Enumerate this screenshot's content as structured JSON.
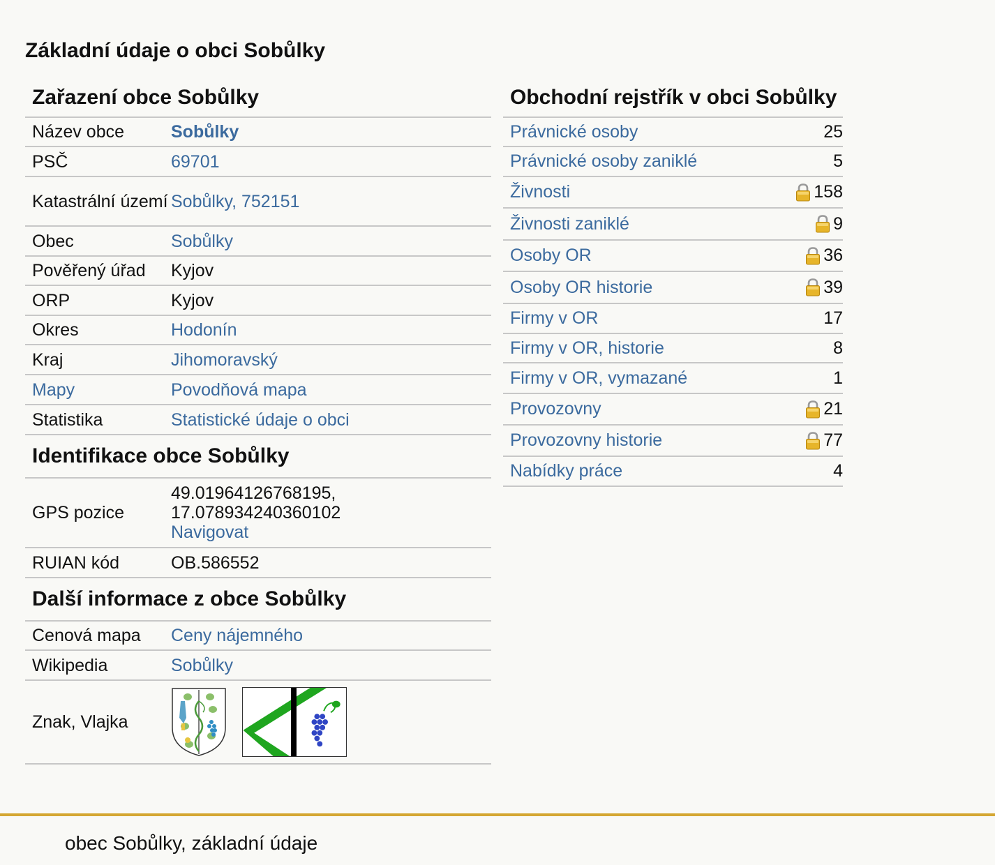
{
  "page_title": "Základní údaje o obci Sobůlky",
  "zarazeni": {
    "heading": "Zařazení obce Sobůlky",
    "rows": {
      "nazev": {
        "label": "Název obce",
        "value": "Sobůlky"
      },
      "psc": {
        "label": "PSČ",
        "value": "69701"
      },
      "katastr": {
        "label": "Katastrální území",
        "value": "Sobůlky, 752151"
      },
      "obec": {
        "label": "Obec",
        "value": "Sobůlky"
      },
      "poverny": {
        "label": "Pověřený úřad",
        "value": "Kyjov"
      },
      "orp": {
        "label": "ORP",
        "value": "Kyjov"
      },
      "okres": {
        "label": "Okres",
        "value": "Hodonín"
      },
      "kraj": {
        "label": "Kraj",
        "value": "Jihomoravský"
      },
      "mapy": {
        "label": "Mapy",
        "value": "Povodňová mapa"
      },
      "statistika": {
        "label": "Statistika",
        "value": "Statistické údaje o obci"
      }
    }
  },
  "identifikace": {
    "heading": "Identifikace obce Sobůlky",
    "gps": {
      "label": "GPS pozice",
      "lat": "49.01964126768195,",
      "lon": "17.078934240360102",
      "navigate": "Navigovat"
    },
    "ruian": {
      "label": "RUIAN kód",
      "value": "OB.586552"
    }
  },
  "dalsi": {
    "heading": "Další informace z obce Sobůlky",
    "cenova": {
      "label": "Cenová mapa",
      "value": "Ceny nájemného"
    },
    "wikipedia": {
      "label": "Wikipedia",
      "value": "Sobůlky"
    },
    "znak": {
      "label": "Znak, Vlajka"
    }
  },
  "rejstrik": {
    "heading": "Obchodní rejstřík v obci Sobůlky",
    "items": [
      {
        "label": "Právnické osoby",
        "value": "25",
        "locked": false
      },
      {
        "label": "Právnické osoby zaniklé",
        "value": "5",
        "locked": false
      },
      {
        "label": "Živnosti",
        "value": "158",
        "locked": true
      },
      {
        "label": "Živnosti zaniklé",
        "value": "9",
        "locked": true
      },
      {
        "label": "Osoby OR",
        "value": "36",
        "locked": true
      },
      {
        "label": "Osoby OR historie",
        "value": "39",
        "locked": true
      },
      {
        "label": "Firmy v OR",
        "value": "17",
        "locked": false
      },
      {
        "label": "Firmy v OR, historie",
        "value": "8",
        "locked": false
      },
      {
        "label": "Firmy v OR, vymazané",
        "value": "1",
        "locked": false
      },
      {
        "label": "Provozovny",
        "value": "21",
        "locked": true
      },
      {
        "label": "Provozovny historie",
        "value": "77",
        "locked": true
      },
      {
        "label": "Nabídky práce",
        "value": "4",
        "locked": false
      }
    ]
  },
  "footer": {
    "text": "obec Sobůlky, základní údaje"
  },
  "colors": {
    "link": "#3b6a9e",
    "footer_border": "#d4a733",
    "background": "#f9f9f6",
    "divider": "#c7c7c7"
  },
  "icons": {
    "lock": "lock-icon",
    "coat_of_arms": "coat-of-arms-icon",
    "flag": "flag-icon"
  }
}
